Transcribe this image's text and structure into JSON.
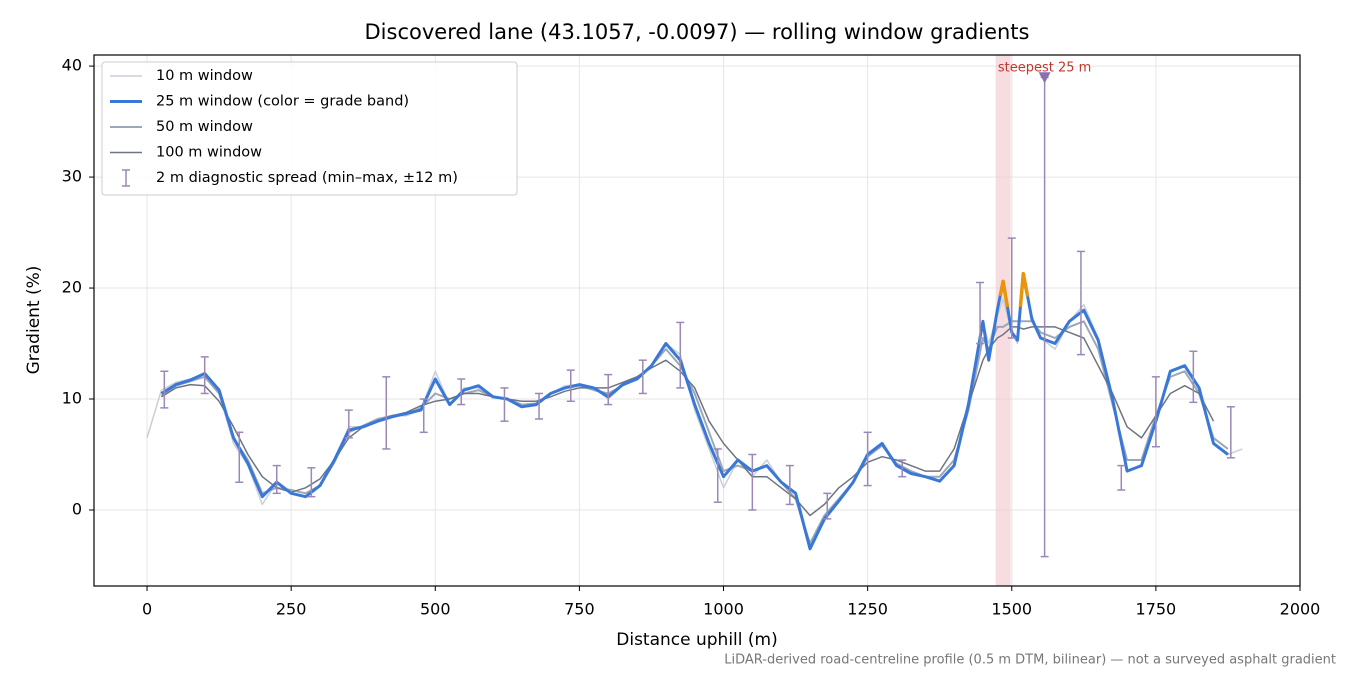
{
  "chart_data": {
    "type": "line",
    "title": "Discovered lane (43.1057, -0.0097) — rolling window gradients",
    "x_label": "Distance uphill (m)",
    "y_label": "Gradient (%)",
    "note": "LiDAR-derived road-centreline profile (0.5 m DTM, bilinear) — not a surveyed asphalt gradient",
    "xlim": [
      -92,
      2000
    ],
    "ylim": [
      -6.85,
      41
    ],
    "xticks": [
      0,
      250,
      500,
      750,
      1000,
      1250,
      1500,
      1750,
      2000
    ],
    "yticks": [
      0,
      10,
      20,
      30,
      40
    ],
    "grid": true,
    "legend": "upper left",
    "x": [
      0,
      25,
      50,
      75,
      100,
      125,
      150,
      175,
      200,
      225,
      250,
      275,
      300,
      325,
      350,
      375,
      400,
      425,
      450,
      475,
      500,
      525,
      550,
      575,
      600,
      625,
      650,
      675,
      700,
      725,
      750,
      775,
      800,
      825,
      850,
      875,
      900,
      925,
      950,
      975,
      1000,
      1025,
      1050,
      1075,
      1100,
      1125,
      1150,
      1175,
      1200,
      1225,
      1250,
      1275,
      1300,
      1325,
      1350,
      1375,
      1400,
      1425,
      1450,
      1460,
      1475,
      1485,
      1500,
      1510,
      1520,
      1535,
      1550,
      1575,
      1600,
      1625,
      1650,
      1675,
      1700,
      1725,
      1750,
      1775,
      1800,
      1825,
      1850,
      1875,
      1900
    ],
    "series": [
      {
        "name": "10 m window",
        "color": "#c9cfd8",
        "width": 1.5,
        "values": [
          6.5,
          10.8,
          11.5,
          11.8,
          12.3,
          10.5,
          6.0,
          4.0,
          0.5,
          2.5,
          1.5,
          1.2,
          2.3,
          4.5,
          7.5,
          7.5,
          8.0,
          8.5,
          8.5,
          9.0,
          12.5,
          9.5,
          11.0,
          11.0,
          10.3,
          10.0,
          9.3,
          9.5,
          10.5,
          11.2,
          11.3,
          11.0,
          10.0,
          11.2,
          12.0,
          13.0,
          15.0,
          14.0,
          9.0,
          5.5,
          2.0,
          4.5,
          3.0,
          4.5,
          2.5,
          1.0,
          -3.5,
          -1.0,
          1.0,
          2.5,
          5.0,
          6.0,
          4.0,
          3.2,
          3.0,
          2.5,
          4.0,
          10.0,
          17.0,
          15.0,
          17.5,
          19.0,
          16.0,
          15.0,
          20.5,
          17.5,
          15.5,
          14.5,
          17.0,
          18.5,
          15.5,
          10.0,
          3.5,
          4.0,
          8.0,
          12.5,
          13.0,
          11.0,
          6.0,
          5.0,
          5.5
        ]
      },
      {
        "name": "25 m window (color = grade band)",
        "color": "#3a78d8",
        "width": 3,
        "grade_bands": [
          {
            "min": 20,
            "color": "#e8950c"
          }
        ],
        "values": [
          null,
          10.5,
          11.3,
          11.7,
          12.3,
          10.8,
          6.5,
          4.2,
          1.2,
          2.5,
          1.5,
          1.2,
          2.2,
          4.5,
          7.2,
          7.5,
          8.0,
          8.4,
          8.7,
          9.0,
          11.8,
          9.5,
          10.8,
          11.2,
          10.2,
          10.0,
          9.3,
          9.5,
          10.5,
          11.0,
          11.3,
          11.0,
          10.2,
          11.3,
          11.8,
          13.0,
          15.0,
          13.5,
          9.5,
          6.0,
          3.0,
          4.5,
          3.5,
          4.0,
          2.5,
          1.5,
          -3.5,
          -0.8,
          0.8,
          2.5,
          5.0,
          6.0,
          4.0,
          3.3,
          3.0,
          2.6,
          4.0,
          9.5,
          17.0,
          13.5,
          18.0,
          20.6,
          16.0,
          15.3,
          21.3,
          17.2,
          15.5,
          15.0,
          17.0,
          18.0,
          15.3,
          10.0,
          3.5,
          4.0,
          8.0,
          12.5,
          13.0,
          11.0,
          6.0,
          5.0,
          null
        ]
      },
      {
        "name": "50 m window",
        "color": "#9aa8b8",
        "width": 2,
        "values": [
          null,
          10.3,
          11.2,
          11.6,
          12.0,
          10.5,
          6.5,
          4.5,
          1.5,
          2.0,
          1.8,
          1.5,
          2.2,
          4.3,
          7.0,
          7.6,
          8.2,
          8.5,
          8.6,
          9.2,
          10.5,
          10.0,
          10.5,
          10.8,
          10.2,
          10.0,
          9.5,
          9.6,
          10.5,
          11.0,
          11.2,
          10.8,
          10.5,
          11.2,
          11.8,
          13.0,
          14.5,
          13.0,
          10.5,
          7.0,
          3.5,
          4.0,
          3.5,
          4.0,
          2.5,
          1.0,
          -3.0,
          -0.5,
          1.0,
          2.5,
          4.8,
          5.8,
          4.2,
          3.5,
          3.0,
          3.0,
          4.5,
          9.0,
          15.5,
          14.5,
          16.5,
          16.5,
          17.0,
          17.0,
          17.0,
          17.0,
          16.0,
          15.5,
          16.5,
          17.0,
          14.5,
          9.5,
          4.5,
          4.5,
          8.5,
          12.0,
          12.5,
          10.5,
          6.5,
          5.5,
          null
        ]
      },
      {
        "name": "100 m window",
        "color": "#6e7582",
        "width": 1.5,
        "values": [
          null,
          10.2,
          11.0,
          11.3,
          11.2,
          9.8,
          7.5,
          5.0,
          3.0,
          2.0,
          1.6,
          2.0,
          2.8,
          4.5,
          6.5,
          7.5,
          8.0,
          8.5,
          8.8,
          9.4,
          9.8,
          10.0,
          10.5,
          10.5,
          10.2,
          10.0,
          9.8,
          9.8,
          10.2,
          10.7,
          11.0,
          11.0,
          11.0,
          11.5,
          12.0,
          12.8,
          13.5,
          12.5,
          11.0,
          8.0,
          6.0,
          4.5,
          3.0,
          3.0,
          2.0,
          1.0,
          -0.5,
          0.5,
          2.0,
          3.0,
          4.3,
          4.8,
          4.5,
          4.0,
          3.5,
          3.5,
          5.5,
          9.5,
          13.5,
          14.5,
          15.5,
          15.8,
          16.5,
          16.5,
          16.3,
          16.5,
          16.5,
          16.5,
          16.0,
          15.5,
          13.0,
          10.5,
          7.5,
          6.5,
          8.5,
          10.5,
          11.2,
          10.5,
          8.0,
          null,
          null
        ]
      }
    ],
    "errorbars": {
      "name": "2 m diagnostic spread (min–max, ±12 m)",
      "color": "#9a88b8",
      "x": [
        30,
        100,
        160,
        225,
        285,
        350,
        415,
        480,
        545,
        620,
        680,
        735,
        800,
        860,
        925,
        990,
        1050,
        1115,
        1180,
        1250,
        1310,
        1445,
        1500,
        1557,
        1620,
        1690,
        1750,
        1815,
        1880
      ],
      "low": [
        9.2,
        10.5,
        2.5,
        1.5,
        1.2,
        6.5,
        5.5,
        7.0,
        9.5,
        8.0,
        8.2,
        9.8,
        9.5,
        10.5,
        11.0,
        0.7,
        0.0,
        0.5,
        -0.8,
        2.2,
        3.0,
        15.0,
        15.5,
        -4.2,
        14.0,
        1.8,
        5.7,
        9.7,
        4.7
      ],
      "high": [
        12.5,
        13.8,
        7.0,
        4.0,
        3.8,
        9.0,
        12.0,
        10.0,
        11.8,
        11.0,
        10.5,
        12.6,
        12.2,
        13.5,
        16.9,
        5.5,
        5.0,
        4.0,
        1.5,
        7.0,
        4.5,
        20.5,
        24.5,
        39.0,
        23.3,
        4.0,
        12.0,
        14.3,
        9.3
      ]
    },
    "highlight_span": {
      "x": [
        1472,
        1498
      ],
      "color": "#f2c6ca"
    },
    "annotation": {
      "text": "steepest 25 m",
      "x": 1557,
      "y": 39,
      "color": "#c0392b",
      "marker_color": "#8a70b0"
    }
  }
}
